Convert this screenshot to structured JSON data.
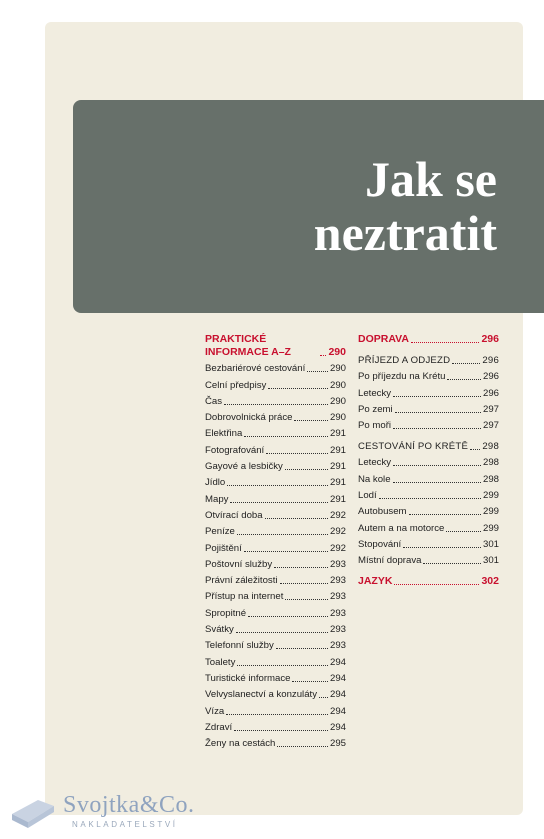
{
  "title": "Jak se neztratit",
  "columns": [
    [
      {
        "text": "PRAKTICKÉ INFORMACE A–Z",
        "page": "290",
        "style": "section"
      },
      {
        "text": "Bezbariérové cestování",
        "page": "290",
        "style": "entry"
      },
      {
        "text": "Celní předpisy",
        "page": "290",
        "style": "entry"
      },
      {
        "text": "Čas",
        "page": "290",
        "style": "entry"
      },
      {
        "text": "Dobrovolnická práce",
        "page": "290",
        "style": "entry"
      },
      {
        "text": "Elektřina",
        "page": "291",
        "style": "entry"
      },
      {
        "text": "Fotografování",
        "page": "291",
        "style": "entry"
      },
      {
        "text": "Gayové a lesbičky",
        "page": "291",
        "style": "entry"
      },
      {
        "text": "Jídlo",
        "page": "291",
        "style": "entry"
      },
      {
        "text": "Mapy",
        "page": "291",
        "style": "entry"
      },
      {
        "text": "Otvírací doba",
        "page": "292",
        "style": "entry"
      },
      {
        "text": "Peníze",
        "page": "292",
        "style": "entry"
      },
      {
        "text": "Pojištění",
        "page": "292",
        "style": "entry"
      },
      {
        "text": "Poštovní služby",
        "page": "293",
        "style": "entry"
      },
      {
        "text": "Právní záležitosti",
        "page": "293",
        "style": "entry"
      },
      {
        "text": "Přístup na internet",
        "page": "293",
        "style": "entry"
      },
      {
        "text": "Spropitné",
        "page": "293",
        "style": "entry"
      },
      {
        "text": "Svátky",
        "page": "293",
        "style": "entry"
      },
      {
        "text": "Telefonní služby",
        "page": "293",
        "style": "entry"
      },
      {
        "text": "Toalety",
        "page": "294",
        "style": "entry"
      },
      {
        "text": "Turistické informace",
        "page": "294",
        "style": "entry"
      },
      {
        "text": "Velvyslanectví a konzuláty",
        "page": "294",
        "style": "entry"
      },
      {
        "text": "Víza",
        "page": "294",
        "style": "entry"
      },
      {
        "text": "Zdraví",
        "page": "294",
        "style": "entry"
      },
      {
        "text": "Ženy na cestách",
        "page": "295",
        "style": "entry"
      }
    ],
    [
      {
        "text": "DOPRAVA",
        "page": "296",
        "style": "section"
      },
      {
        "text": "PŘÍJEZD A ODJEZD",
        "page": "296",
        "style": "subsection"
      },
      {
        "text": "Po příjezdu na Krétu",
        "page": "296",
        "style": "entry"
      },
      {
        "text": "Letecky",
        "page": "296",
        "style": "entry"
      },
      {
        "text": "Po zemi",
        "page": "297",
        "style": "entry"
      },
      {
        "text": "Po moři",
        "page": "297",
        "style": "entry"
      },
      {
        "text": "CESTOVÁNÍ PO KRÉTĚ",
        "page": "298",
        "style": "subsection"
      },
      {
        "text": "Letecky",
        "page": "298",
        "style": "entry"
      },
      {
        "text": "Na kole",
        "page": "298",
        "style": "entry"
      },
      {
        "text": "Lodí",
        "page": "299",
        "style": "entry"
      },
      {
        "text": "Autobusem",
        "page": "299",
        "style": "entry"
      },
      {
        "text": "Autem a na motorce",
        "page": "299",
        "style": "entry"
      },
      {
        "text": "Stopování",
        "page": "301",
        "style": "entry"
      },
      {
        "text": "Místní doprava",
        "page": "301",
        "style": "entry"
      },
      {
        "text": "JAZYK",
        "page": "302",
        "style": "section"
      }
    ]
  ],
  "logo": {
    "name": "Svojtka&Co.",
    "subtitle": "NAKLADATELSTVÍ"
  }
}
